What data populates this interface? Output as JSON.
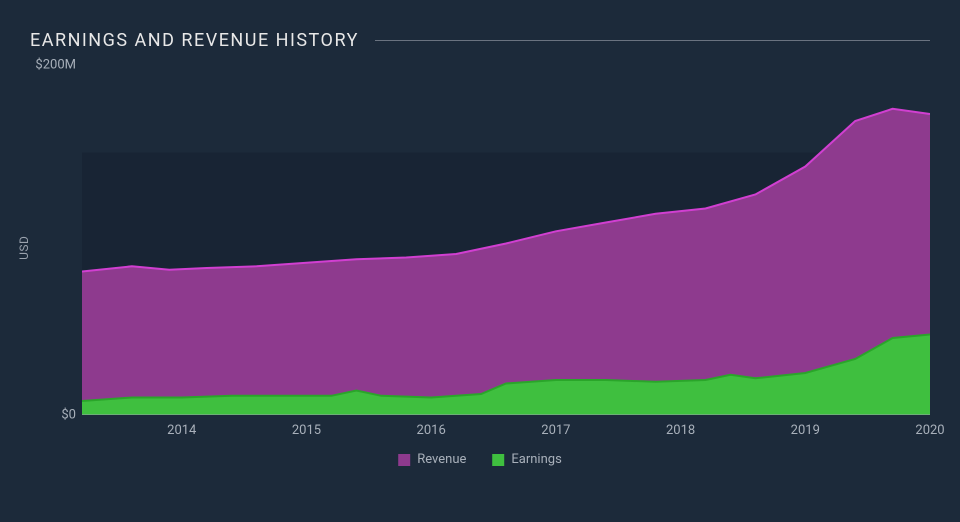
{
  "chart": {
    "type": "area",
    "title": "EARNINGS AND REVENUE HISTORY",
    "title_fontsize": 18,
    "title_color": "#e8e8e8",
    "background_color": "#1c2a3a",
    "inner_band_color": "#182434",
    "grid_color": "#5a6470",
    "axis_color": "#9aa2ad",
    "ylabel": "USD",
    "ylabel_fontsize": 12,
    "ylim": [
      0,
      200
    ],
    "ytick_positions": [
      0,
      200
    ],
    "ytick_labels": [
      "$0",
      "$200M"
    ],
    "xlim": [
      2013.2,
      2020
    ],
    "xtick_positions": [
      2014,
      2015,
      2016,
      2017,
      2018,
      2019,
      2020
    ],
    "xtick_labels": [
      "2014",
      "2015",
      "2016",
      "2017",
      "2018",
      "2019",
      "2020"
    ],
    "inner_band": {
      "ymin": 50,
      "ymax": 150
    },
    "series": [
      {
        "name": "Revenue",
        "fill_color": "#8e3a8e",
        "stroke_color": "#d13fd1",
        "stroke_width": 2,
        "x": [
          2013.2,
          2013.6,
          2013.9,
          2014.2,
          2014.6,
          2015.0,
          2015.4,
          2015.8,
          2016.2,
          2016.6,
          2017.0,
          2017.4,
          2017.8,
          2018.2,
          2018.6,
          2019.0,
          2019.4,
          2019.7,
          2020.0
        ],
        "y": [
          82,
          85,
          83,
          84,
          85,
          87,
          89,
          90,
          92,
          98,
          105,
          110,
          115,
          118,
          126,
          142,
          168,
          175,
          172
        ]
      },
      {
        "name": "Earnings",
        "fill_color": "#3fbf3f",
        "stroke_color": "#2aa52a",
        "stroke_width": 2,
        "x": [
          2013.2,
          2013.6,
          2014.0,
          2014.4,
          2014.8,
          2015.2,
          2015.4,
          2015.6,
          2016.0,
          2016.4,
          2016.6,
          2017.0,
          2017.4,
          2017.8,
          2018.2,
          2018.4,
          2018.6,
          2019.0,
          2019.4,
          2019.7,
          2020.0
        ],
        "y": [
          8,
          10,
          10,
          11,
          11,
          11,
          14,
          11,
          10,
          12,
          18,
          20,
          20,
          19,
          20,
          23,
          21,
          24,
          32,
          44,
          46
        ]
      }
    ],
    "legend": {
      "items": [
        {
          "label": "Revenue",
          "color": "#8e3a8e"
        },
        {
          "label": "Earnings",
          "color": "#3fbf3f"
        }
      ],
      "fontsize": 13
    }
  }
}
